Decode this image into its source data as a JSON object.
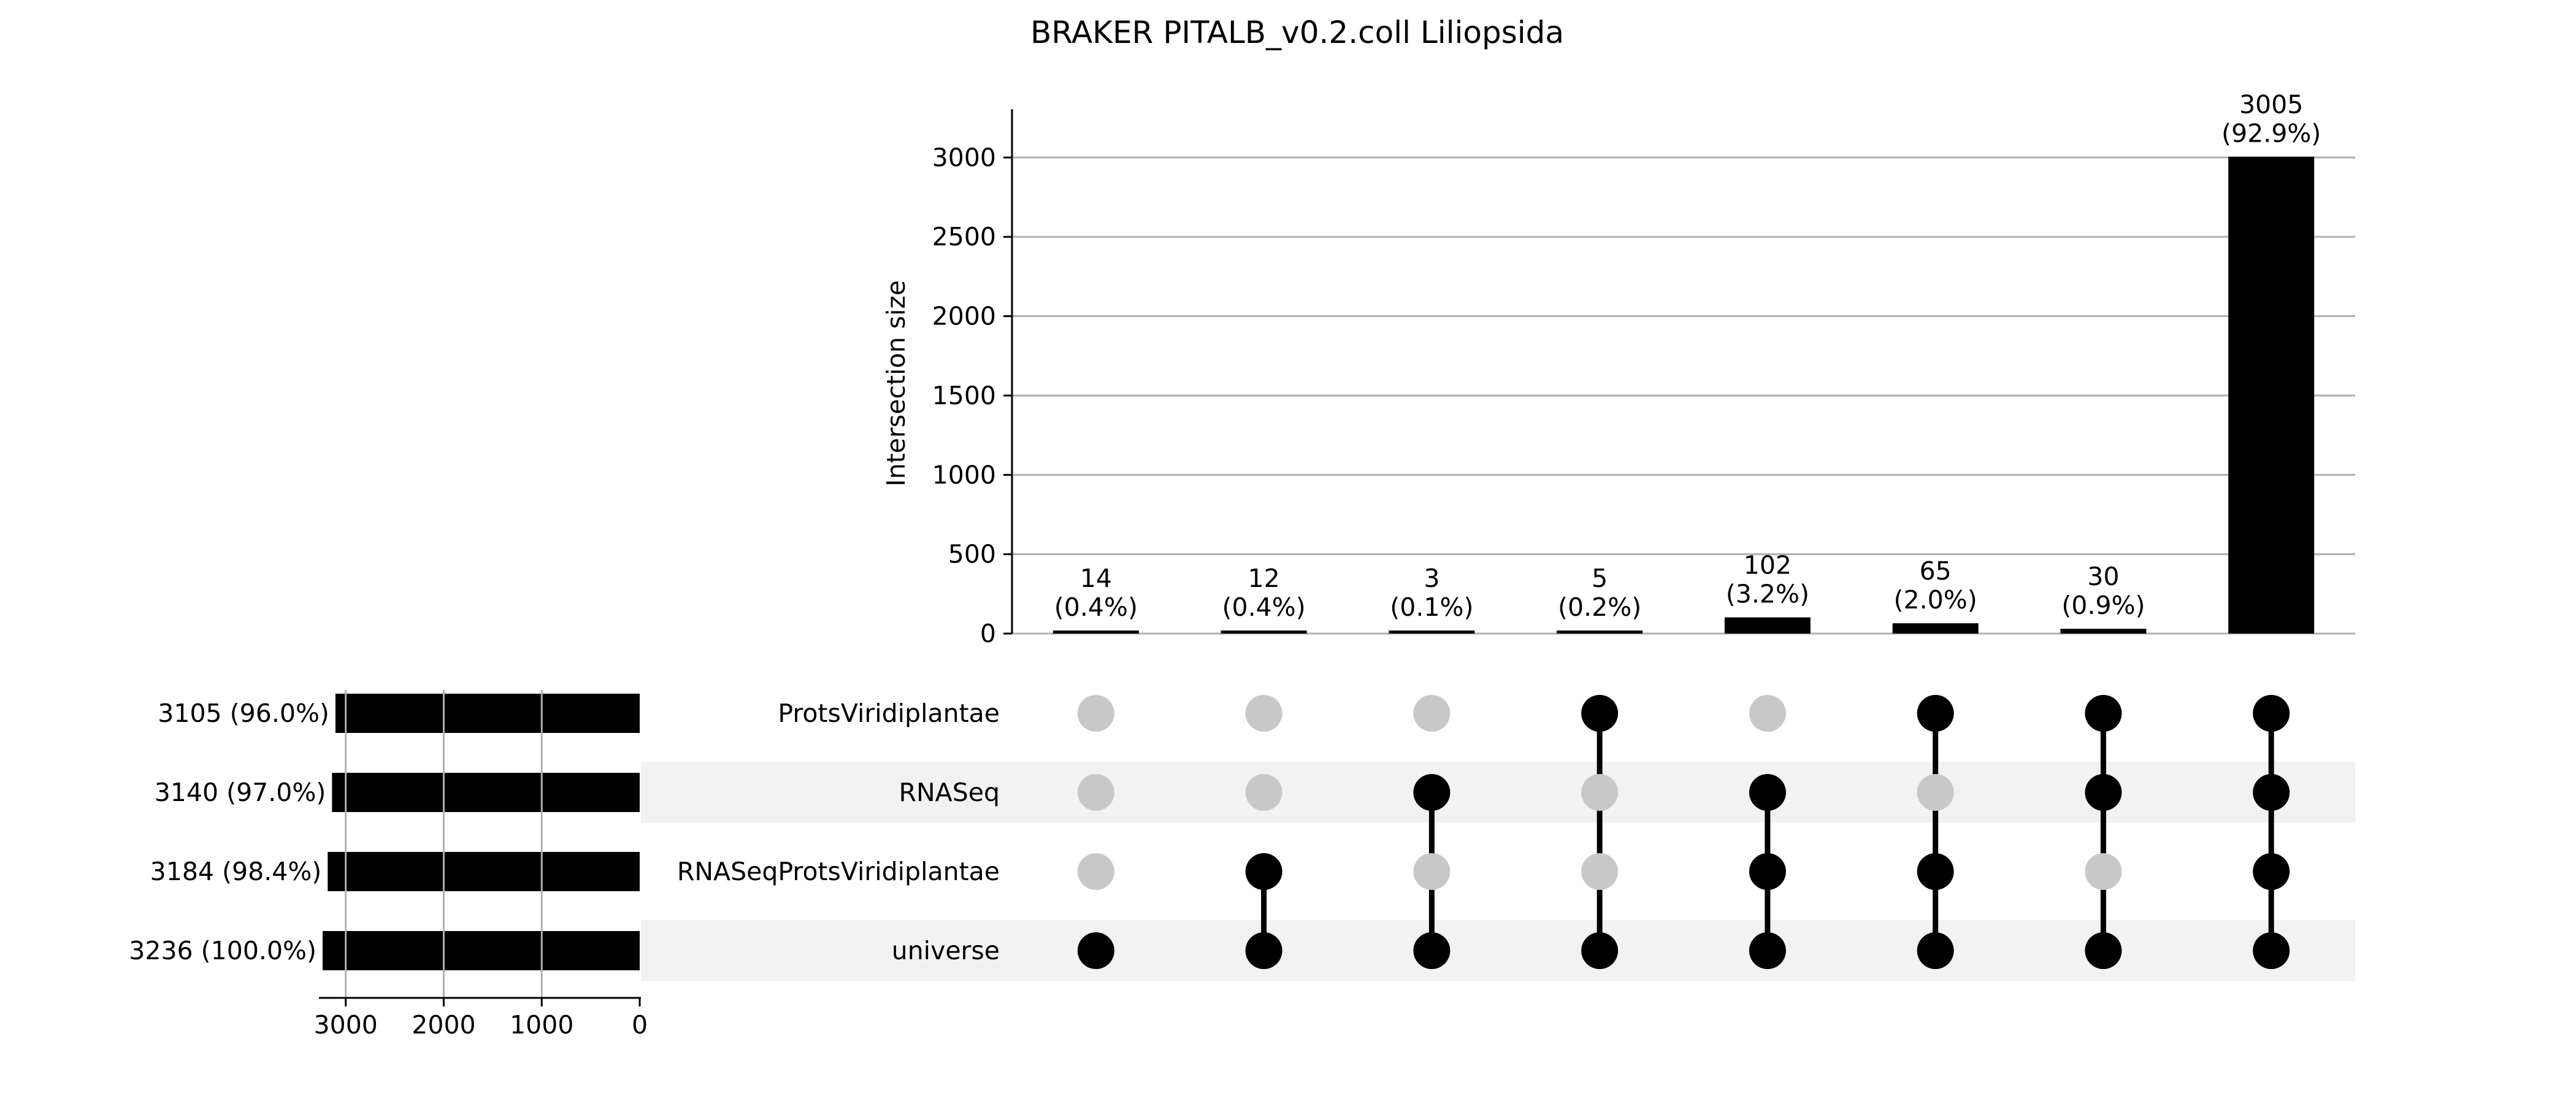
{
  "chart_data": {
    "type": "bar",
    "title": "BRAKER PITALB_v0.2.coll Liliopsida",
    "ylabel": "Intersection size",
    "ylim": [
      0,
      3150
    ],
    "y_ticks": [
      0,
      500,
      1000,
      1500,
      2000,
      2500,
      3000
    ],
    "grid": true,
    "sets": [
      {
        "name": "ProtsViridiplantae",
        "size": 3105,
        "label": "3105 (96.0%)"
      },
      {
        "name": "RNASeq",
        "size": 3140,
        "label": "3140 (97.0%)"
      },
      {
        "name": "RNASeqProtsViridiplantae",
        "size": 3184,
        "label": "3184 (98.4%)"
      },
      {
        "name": "universe",
        "size": 3236,
        "label": "3236 (100.0%)"
      }
    ],
    "set_size_ticks": [
      3000,
      2000,
      1000,
      0
    ],
    "set_size_xlim": [
      0,
      3236
    ],
    "intersections": [
      {
        "value": 14,
        "count_label": "14",
        "pct_label": "(0.4%)",
        "members": [
          "universe"
        ]
      },
      {
        "value": 12,
        "count_label": "12",
        "pct_label": "(0.4%)",
        "members": [
          "RNASeqProtsViridiplantae",
          "universe"
        ]
      },
      {
        "value": 3,
        "count_label": "3",
        "pct_label": "(0.1%)",
        "members": [
          "RNASeq",
          "universe"
        ]
      },
      {
        "value": 5,
        "count_label": "5",
        "pct_label": "(0.2%)",
        "members": [
          "ProtsViridiplantae",
          "universe"
        ]
      },
      {
        "value": 102,
        "count_label": "102",
        "pct_label": "(3.2%)",
        "members": [
          "RNASeq",
          "RNASeqProtsViridiplantae",
          "universe"
        ]
      },
      {
        "value": 65,
        "count_label": "65",
        "pct_label": "(2.0%)",
        "members": [
          "ProtsViridiplantae",
          "RNASeqProtsViridiplantae",
          "universe"
        ]
      },
      {
        "value": 30,
        "count_label": "30",
        "pct_label": "(0.9%)",
        "members": [
          "ProtsViridiplantae",
          "RNASeq",
          "universe"
        ]
      },
      {
        "value": 3005,
        "count_label": "3005",
        "pct_label": "(92.9%)",
        "members": [
          "ProtsViridiplantae",
          "RNASeq",
          "RNASeqProtsViridiplantae",
          "universe"
        ]
      }
    ],
    "colors": {
      "bar": "#000000",
      "dot_active": "#000000",
      "dot_inactive": "#c8c8c8",
      "grid": "#b0b0b0",
      "stripe": "#f2f2f2"
    }
  }
}
